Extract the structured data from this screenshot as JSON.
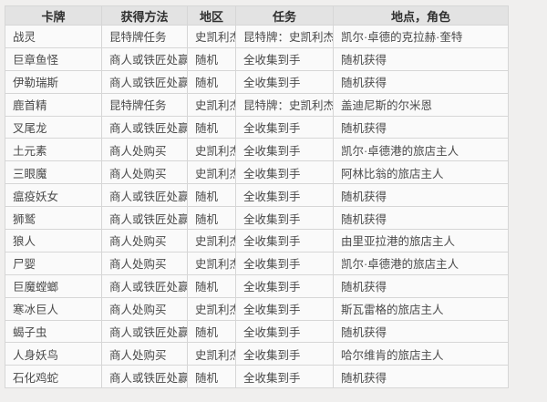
{
  "colors": {
    "page_bg": "#f0efee",
    "header_bg": "#e3e3e3",
    "row_bg": "#fafafa",
    "border": "#d6d6d6",
    "header_text": "#2f2f2f",
    "body_text": "#4a4a4a"
  },
  "table": {
    "columns": [
      {
        "key": "card",
        "label": "卡牌"
      },
      {
        "key": "method",
        "label": "获得方法"
      },
      {
        "key": "region",
        "label": "地区"
      },
      {
        "key": "quest",
        "label": "任务"
      },
      {
        "key": "location",
        "label": "地点，角色"
      }
    ],
    "rows": [
      {
        "cells": [
          "战灵",
          "昆特牌任务",
          "史凯利杰",
          "昆特牌：史凯利杰风",
          "凯尔·卓德的克拉赫·奎特"
        ]
      },
      {
        "cells": [
          "巨章鱼怪",
          "商人或铁匠处赢得",
          "随机",
          "全收集到手",
          "随机获得"
        ]
      },
      {
        "cells": [
          "伊勒瑞斯",
          "商人或铁匠处赢得",
          "随机",
          "全收集到手",
          "随机获得"
        ]
      },
      {
        "cells": [
          "鹿首精",
          "昆特牌任务",
          "史凯利杰",
          "昆特牌：史凯利杰风",
          "盖迪尼斯的尔米恩"
        ]
      },
      {
        "cells": [
          "叉尾龙",
          "商人或铁匠处赢得",
          "随机",
          "全收集到手",
          "随机获得"
        ]
      },
      {
        "cells": [
          "土元素",
          "商人处购买",
          "史凯利杰",
          "全收集到手",
          "凯尔·卓德港的旅店主人"
        ]
      },
      {
        "cells": [
          "三眼魔",
          "商人处购买",
          "史凯利杰",
          "全收集到手",
          "阿林比翁的旅店主人"
        ]
      },
      {
        "cells": [
          "瘟疫妖女",
          "商人或铁匠处赢得",
          "随机",
          "全收集到手",
          "随机获得"
        ]
      },
      {
        "cells": [
          "狮鹫",
          "商人或铁匠处赢得",
          "随机",
          "全收集到手",
          "随机获得"
        ]
      },
      {
        "cells": [
          "狼人",
          "商人处购买",
          "史凯利杰",
          "全收集到手",
          "由里亚拉港的旅店主人"
        ]
      },
      {
        "cells": [
          "尸婴",
          "商人处购买",
          "史凯利杰",
          "全收集到手",
          "凯尔·卓德港的旅店主人"
        ]
      },
      {
        "cells": [
          "巨魔螳螂",
          "商人或铁匠处赢得",
          "随机",
          "全收集到手",
          "随机获得"
        ]
      },
      {
        "cells": [
          "寒冰巨人",
          "商人处购买",
          "史凯利杰",
          "全收集到手",
          "斯瓦雷格的旅店主人"
        ]
      },
      {
        "cells": [
          "蝎子虫",
          "商人或铁匠处赢得",
          "随机",
          "全收集到手",
          "随机获得"
        ]
      },
      {
        "cells": [
          "人身妖鸟",
          "商人处购买",
          "史凯利杰",
          "全收集到手",
          "哈尔维肯的旅店主人"
        ]
      },
      {
        "cells": [
          "石化鸡蛇",
          "商人或铁匠处赢得",
          "随机",
          "全收集到手",
          "随机获得"
        ]
      }
    ]
  }
}
